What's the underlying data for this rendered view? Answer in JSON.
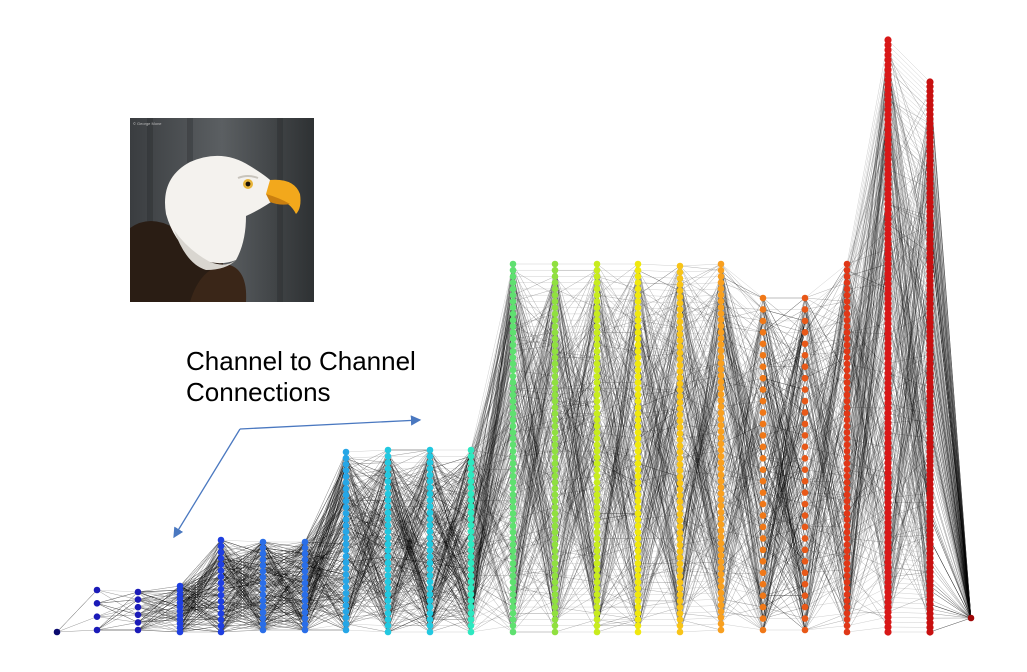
{
  "annotation": {
    "line1": "Channel to Channel",
    "line2": "Connections"
  },
  "image": {
    "subject": "bald eagle photo",
    "watermark": "© George Mone"
  },
  "network": {
    "description_colors": [
      "#0a0a6e",
      "#1a1ab8",
      "#1f3fe0",
      "#2a6ee8",
      "#26a6e6",
      "#22c8e0",
      "#2ee8c0",
      "#5fe070",
      "#90e040",
      "#c8ec1e",
      "#f0e80e",
      "#f8c418",
      "#f8a020",
      "#f07818",
      "#e85818",
      "#e03818",
      "#d81818",
      "#c81010",
      "#a00808"
    ],
    "arrow_color": "#4a78c0"
  }
}
